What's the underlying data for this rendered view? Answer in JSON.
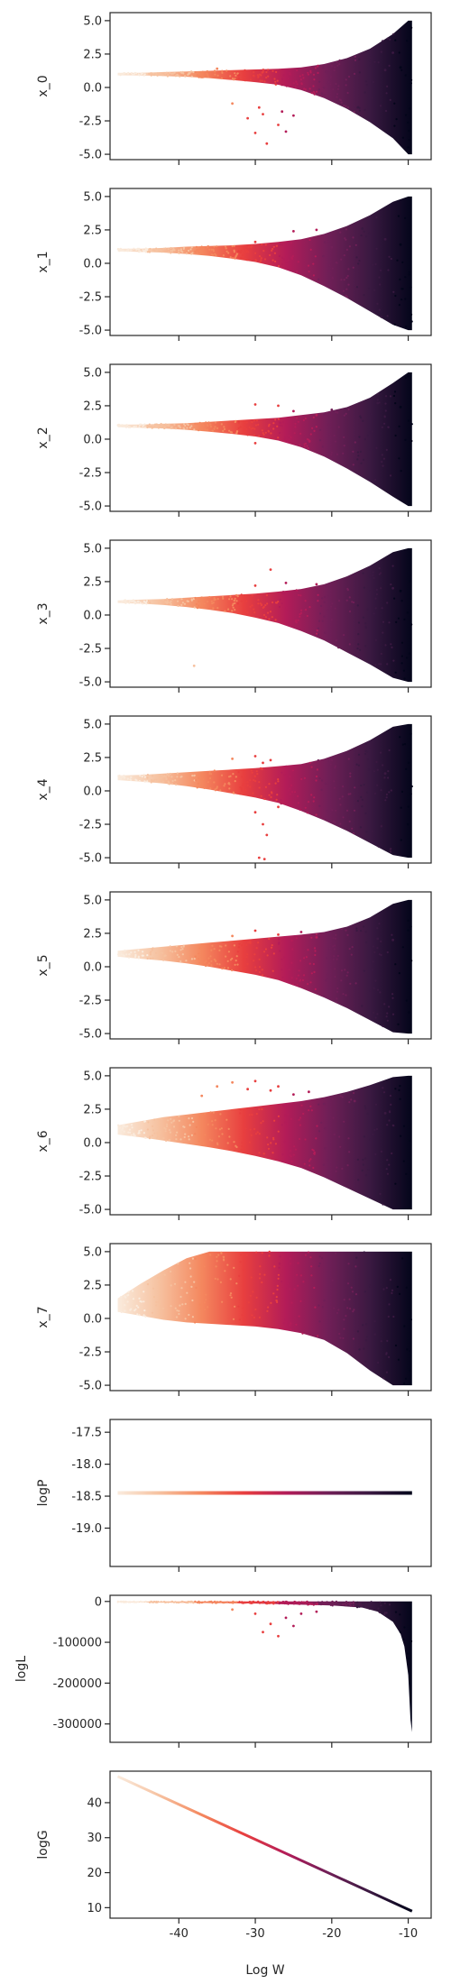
{
  "figure": {
    "xlabel": "Log W"
  },
  "colors": {
    "colormap": [
      "#faebdd",
      "#f6c19f",
      "#f4875e",
      "#e83f3f",
      "#b31c58",
      "#701f57",
      "#3a1941",
      "#03051a"
    ],
    "axes": "#262626",
    "background": "#ffffff"
  },
  "chart_data": [
    {
      "type": "scatter",
      "name": "x_0",
      "ylabel": "x_0",
      "xlim": [
        -49,
        -7
      ],
      "ylim": [
        -5.4,
        5.6
      ],
      "xticks": [
        -40,
        -30,
        -20,
        -10
      ],
      "yticks": [
        -5.0,
        -2.5,
        0.0,
        2.5,
        5.0
      ],
      "ytick_labels": [
        "-5.0",
        "-2.5",
        "0.0",
        "2.5",
        "5.0"
      ],
      "xtick_labels_visible": false,
      "shape": "flat funnel widening toward x=-10",
      "x": [
        -48,
        -45,
        -42,
        -39,
        -36,
        -33,
        -30,
        -27,
        -24,
        -21,
        -18,
        -15,
        -12,
        -10,
        -9.5
      ],
      "y_upper": [
        1.1,
        1.1,
        1.15,
        1.2,
        1.25,
        1.3,
        1.35,
        1.4,
        1.5,
        1.75,
        2.2,
        2.9,
        4.0,
        5.0,
        5.0
      ],
      "y_lower": [
        0.9,
        0.9,
        0.85,
        0.8,
        0.7,
        0.55,
        0.4,
        0.2,
        -0.2,
        -0.8,
        -1.6,
        -2.6,
        -3.8,
        -5.0,
        -5.0
      ],
      "outliers": [
        [
          -33,
          -1.2
        ],
        [
          -31,
          -2.3
        ],
        [
          -30,
          -3.4
        ],
        [
          -29,
          -2.0
        ],
        [
          -28.5,
          -4.2
        ],
        [
          -27,
          -2.8
        ],
        [
          -26,
          -3.3
        ],
        [
          -25,
          -2.1
        ],
        [
          -29.5,
          -1.5
        ],
        [
          -26.5,
          -1.8
        ],
        [
          -35,
          1.4
        ],
        [
          -20,
          1.6
        ],
        [
          -15,
          2.0
        ],
        [
          -13,
          1.3
        ],
        [
          -11,
          1.5
        ],
        [
          -12,
          2.6
        ]
      ]
    },
    {
      "type": "scatter",
      "name": "x_1",
      "ylabel": "x_1",
      "xlim": [
        -49,
        -7
      ],
      "ylim": [
        -5.4,
        5.6
      ],
      "xticks": [
        -40,
        -30,
        -20,
        -10
      ],
      "yticks": [
        -5.0,
        -2.5,
        0.0,
        2.5,
        5.0
      ],
      "ytick_labels": [
        "-5.0",
        "-2.5",
        "0.0",
        "2.5",
        "5.0"
      ],
      "xtick_labels_visible": false,
      "shape": "flat funnel widening toward x=-10",
      "x": [
        -48,
        -45,
        -42,
        -39,
        -36,
        -33,
        -30,
        -27,
        -24,
        -21,
        -18,
        -15,
        -12,
        -10,
        -9.5
      ],
      "y_upper": [
        1.1,
        1.1,
        1.15,
        1.25,
        1.3,
        1.35,
        1.45,
        1.6,
        1.8,
        2.2,
        2.8,
        3.6,
        4.6,
        5.0,
        5.0
      ],
      "y_lower": [
        0.9,
        0.85,
        0.8,
        0.7,
        0.55,
        0.35,
        0.1,
        -0.3,
        -0.9,
        -1.7,
        -2.6,
        -3.6,
        -4.6,
        -5.0,
        -5.0
      ],
      "outliers": [
        [
          -25,
          2.4
        ],
        [
          -22,
          2.5
        ],
        [
          -20,
          1.2
        ],
        [
          -16,
          2.6
        ],
        [
          -30,
          1.6
        ],
        [
          -13,
          1.8
        ],
        [
          -11,
          1.4
        ]
      ]
    },
    {
      "type": "scatter",
      "name": "x_2",
      "ylabel": "x_2",
      "xlim": [
        -49,
        -7
      ],
      "ylim": [
        -5.4,
        5.6
      ],
      "xticks": [
        -40,
        -30,
        -20,
        -10
      ],
      "yticks": [
        -5.0,
        -2.5,
        0.0,
        2.5,
        5.0
      ],
      "ytick_labels": [
        "-5.0",
        "-2.5",
        "0.0",
        "2.5",
        "5.0"
      ],
      "xtick_labels_visible": false,
      "shape": "flat funnel widening toward x=-10",
      "x": [
        -48,
        -45,
        -42,
        -39,
        -36,
        -33,
        -30,
        -27,
        -24,
        -21,
        -18,
        -15,
        -12,
        -10,
        -9.5
      ],
      "y_upper": [
        1.1,
        1.1,
        1.15,
        1.2,
        1.3,
        1.4,
        1.5,
        1.6,
        1.8,
        2.0,
        2.4,
        3.1,
        4.2,
        5.0,
        5.0
      ],
      "y_lower": [
        0.9,
        0.85,
        0.8,
        0.7,
        0.55,
        0.4,
        0.2,
        -0.1,
        -0.6,
        -1.3,
        -2.2,
        -3.2,
        -4.3,
        -5.0,
        -5.0
      ],
      "outliers": [
        [
          -30,
          2.6
        ],
        [
          -27,
          2.5
        ],
        [
          -25,
          2.1
        ],
        [
          -22,
          1.8
        ],
        [
          -20,
          2.2
        ],
        [
          -14,
          2.7
        ],
        [
          -11,
          2.4
        ],
        [
          -30,
          -0.3
        ]
      ]
    },
    {
      "type": "scatter",
      "name": "x_3",
      "ylabel": "x_3",
      "xlim": [
        -49,
        -7
      ],
      "ylim": [
        -5.4,
        5.6
      ],
      "xticks": [
        -40,
        -30,
        -20,
        -10
      ],
      "yticks": [
        -5.0,
        -2.5,
        0.0,
        2.5,
        5.0
      ],
      "ytick_labels": [
        "-5.0",
        "-2.5",
        "0.0",
        "2.5",
        "5.0"
      ],
      "xtick_labels_visible": false,
      "shape": "flat funnel widening toward x=-10",
      "x": [
        -48,
        -45,
        -42,
        -39,
        -36,
        -33,
        -30,
        -27,
        -24,
        -21,
        -18,
        -15,
        -12,
        -10,
        -9.5
      ],
      "y_upper": [
        1.1,
        1.15,
        1.2,
        1.3,
        1.4,
        1.5,
        1.6,
        1.75,
        1.95,
        2.3,
        2.9,
        3.7,
        4.7,
        5.0,
        5.0
      ],
      "y_lower": [
        0.9,
        0.85,
        0.75,
        0.6,
        0.4,
        0.15,
        -0.2,
        -0.6,
        -1.2,
        -1.9,
        -2.8,
        -3.7,
        -4.7,
        -5.0,
        -5.0
      ],
      "outliers": [
        [
          -28,
          3.4
        ],
        [
          -30,
          2.2
        ],
        [
          -26,
          2.4
        ],
        [
          -22,
          2.3
        ],
        [
          -15,
          2.9
        ],
        [
          -12,
          2.0
        ],
        [
          -38,
          -3.8
        ],
        [
          -11,
          1.8
        ]
      ]
    },
    {
      "type": "scatter",
      "name": "x_4",
      "ylabel": "x_4",
      "xlim": [
        -49,
        -7
      ],
      "ylim": [
        -5.4,
        5.6
      ],
      "xticks": [
        -40,
        -30,
        -20,
        -10
      ],
      "yticks": [
        -5.0,
        -2.5,
        0.0,
        2.5,
        5.0
      ],
      "ytick_labels": [
        "-5.0",
        "-2.5",
        "0.0",
        "2.5",
        "5.0"
      ],
      "xtick_labels_visible": false,
      "shape": "flat funnel widening toward x=-10",
      "x": [
        -48,
        -45,
        -42,
        -39,
        -36,
        -33,
        -30,
        -27,
        -24,
        -21,
        -18,
        -15,
        -12,
        -10,
        -9.5
      ],
      "y_upper": [
        1.15,
        1.2,
        1.3,
        1.4,
        1.5,
        1.6,
        1.7,
        1.85,
        2.0,
        2.4,
        3.0,
        3.8,
        4.8,
        5.0,
        5.0
      ],
      "y_lower": [
        0.8,
        0.7,
        0.55,
        0.35,
        0.1,
        -0.2,
        -0.5,
        -0.9,
        -1.5,
        -2.2,
        -3.0,
        -3.9,
        -4.8,
        -5.0,
        -5.0
      ],
      "outliers": [
        [
          -33,
          2.4
        ],
        [
          -30,
          2.6
        ],
        [
          -29,
          2.1
        ],
        [
          -28,
          2.3
        ],
        [
          -30,
          -1.6
        ],
        [
          -29,
          -2.5
        ],
        [
          -28.5,
          -3.3
        ],
        [
          -29.5,
          -5.0
        ],
        [
          -28.8,
          -5.1
        ],
        [
          -27,
          -1.2
        ],
        [
          -20,
          2.3
        ],
        [
          -13,
          1.3
        ]
      ]
    },
    {
      "type": "scatter",
      "name": "x_5",
      "ylabel": "x_5",
      "xlim": [
        -49,
        -7
      ],
      "ylim": [
        -5.4,
        5.6
      ],
      "xticks": [
        -40,
        -30,
        -20,
        -10
      ],
      "yticks": [
        -5.0,
        -2.5,
        0.0,
        2.5,
        5.0
      ],
      "ytick_labels": [
        "-5.0",
        "-2.5",
        "0.0",
        "2.5",
        "5.0"
      ],
      "xtick_labels_visible": false,
      "shape": "fan widening toward x=-10",
      "x": [
        -48,
        -45,
        -42,
        -39,
        -36,
        -33,
        -30,
        -27,
        -24,
        -21,
        -18,
        -15,
        -12,
        -10,
        -9.5
      ],
      "y_upper": [
        1.2,
        1.35,
        1.5,
        1.65,
        1.8,
        1.95,
        2.1,
        2.25,
        2.4,
        2.6,
        3.0,
        3.7,
        4.7,
        5.0,
        5.0
      ],
      "y_lower": [
        0.75,
        0.6,
        0.45,
        0.25,
        0.0,
        -0.3,
        -0.6,
        -1.0,
        -1.6,
        -2.3,
        -3.1,
        -4.0,
        -4.9,
        -5.0,
        -5.0
      ],
      "outliers": [
        [
          -33,
          2.3
        ],
        [
          -30,
          2.7
        ],
        [
          -27,
          2.4
        ],
        [
          -24,
          2.6
        ],
        [
          -22,
          2.2
        ],
        [
          -14,
          2.1
        ],
        [
          -12,
          2.0
        ]
      ]
    },
    {
      "type": "scatter",
      "name": "x_6",
      "ylabel": "x_6",
      "xlim": [
        -49,
        -7
      ],
      "ylim": [
        -5.4,
        5.6
      ],
      "xticks": [
        -40,
        -30,
        -20,
        -10
      ],
      "yticks": [
        -5.0,
        -2.5,
        0.0,
        2.5,
        5.0
      ],
      "ytick_labels": [
        "-5.0",
        "-2.5",
        "0.0",
        "2.5",
        "5.0"
      ],
      "xtick_labels_visible": false,
      "shape": "fan widening toward x=-10",
      "x": [
        -48,
        -45,
        -42,
        -39,
        -36,
        -33,
        -30,
        -27,
        -24,
        -21,
        -18,
        -15,
        -12,
        -10,
        -9.5
      ],
      "y_upper": [
        1.3,
        1.6,
        1.9,
        2.1,
        2.3,
        2.5,
        2.7,
        2.9,
        3.1,
        3.4,
        3.8,
        4.3,
        4.9,
        5.0,
        5.0
      ],
      "y_lower": [
        0.6,
        0.4,
        0.15,
        -0.1,
        -0.35,
        -0.65,
        -1.0,
        -1.4,
        -1.9,
        -2.6,
        -3.4,
        -4.2,
        -5.0,
        -5.0,
        -5.0
      ],
      "outliers": [
        [
          -37,
          3.5
        ],
        [
          -35,
          4.2
        ],
        [
          -33,
          4.5
        ],
        [
          -31,
          4.0
        ],
        [
          -30,
          4.6
        ],
        [
          -28,
          3.9
        ],
        [
          -27,
          4.2
        ],
        [
          -25,
          3.6
        ],
        [
          -23,
          3.8
        ],
        [
          -21,
          2.9
        ],
        [
          -17,
          3.1
        ],
        [
          -13,
          2.2
        ]
      ]
    },
    {
      "type": "scatter",
      "name": "x_7",
      "ylabel": "x_7",
      "xlim": [
        -49,
        -7
      ],
      "ylim": [
        -5.4,
        5.6
      ],
      "xticks": [
        -40,
        -30,
        -20,
        -10
      ],
      "yticks": [
        -5.0,
        -2.5,
        0.0,
        2.5,
        5.0
      ],
      "ytick_labels": [
        "-5.0",
        "-2.5",
        "0.0",
        "2.5",
        "5.0"
      ],
      "xtick_labels_visible": false,
      "shape": "upper region saturated at 5.0",
      "x": [
        -48,
        -45,
        -42,
        -39,
        -36,
        -33,
        -30,
        -27,
        -24,
        -21,
        -18,
        -15,
        -12,
        -10,
        -9.5
      ],
      "y_upper": [
        1.5,
        2.6,
        3.6,
        4.5,
        5.0,
        5.0,
        5.0,
        5.0,
        5.0,
        5.0,
        5.0,
        5.0,
        5.0,
        5.0,
        5.0
      ],
      "y_lower": [
        0.5,
        0.2,
        -0.1,
        -0.3,
        -0.4,
        -0.5,
        -0.6,
        -0.8,
        -1.1,
        -1.6,
        -2.6,
        -3.9,
        -5.0,
        -5.0,
        -5.0
      ],
      "outliers": []
    },
    {
      "type": "scatter",
      "name": "logP",
      "ylabel": "logP",
      "xlim": [
        -49,
        -7
      ],
      "ylim": [
        -19.6,
        -17.3
      ],
      "xticks": [
        -40,
        -30,
        -20,
        -10
      ],
      "yticks": [
        -19.0,
        -18.5,
        -18.0,
        -17.5
      ],
      "ytick_labels": [
        "-19.0",
        "-18.5",
        "-18.0",
        "-17.5"
      ],
      "xtick_labels_visible": false,
      "shape": "constant line",
      "x": [
        -48,
        -9.5
      ],
      "value": -18.45
    },
    {
      "type": "scatter",
      "name": "logL",
      "ylabel": "logL",
      "xlim": [
        -49,
        -7
      ],
      "ylim": [
        -345000,
        15000
      ],
      "xticks": [
        -40,
        -30,
        -20,
        -10
      ],
      "yticks": [
        -300000,
        -200000,
        -100000,
        0
      ],
      "ytick_labels": [
        "-300000",
        "-200000",
        "-100000",
        "0"
      ],
      "xtick_labels_visible": false,
      "shape": "near zero then dropping steeply at x=-10",
      "x": [
        -48,
        -40,
        -30,
        -20,
        -16,
        -14,
        -12,
        -11,
        -10.5,
        -10,
        -9.7,
        -9.5
      ],
      "y_upper": [
        0,
        0,
        0,
        0,
        0,
        0,
        0,
        0,
        0,
        0,
        0,
        0
      ],
      "y_lower": [
        -2000,
        -3000,
        -5000,
        -10000,
        -15000,
        -25000,
        -50000,
        -80000,
        -110000,
        -180000,
        -290000,
        -320000
      ],
      "outliers": [
        [
          -33,
          -20000
        ],
        [
          -30,
          -30000
        ],
        [
          -29,
          -75000
        ],
        [
          -28,
          -55000
        ],
        [
          -27,
          -85000
        ],
        [
          -26,
          -40000
        ],
        [
          -25,
          -60000
        ],
        [
          -24,
          -30000
        ],
        [
          -22,
          -25000
        ]
      ]
    },
    {
      "type": "scatter",
      "name": "logG",
      "ylabel": "logG",
      "xlim": [
        -49,
        -7
      ],
      "ylim": [
        7,
        49
      ],
      "xticks": [
        -40,
        -30,
        -20,
        -10
      ],
      "xtick_labels": [
        "-40",
        "-30",
        "-20",
        "-10"
      ],
      "yticks": [
        10,
        20,
        30,
        40
      ],
      "ytick_labels": [
        "10",
        "20",
        "30",
        "40"
      ],
      "xtick_labels_visible": true,
      "shape": "straight decreasing line",
      "x": [
        -48,
        -9.5
      ],
      "y": [
        47.5,
        9.0
      ]
    }
  ]
}
